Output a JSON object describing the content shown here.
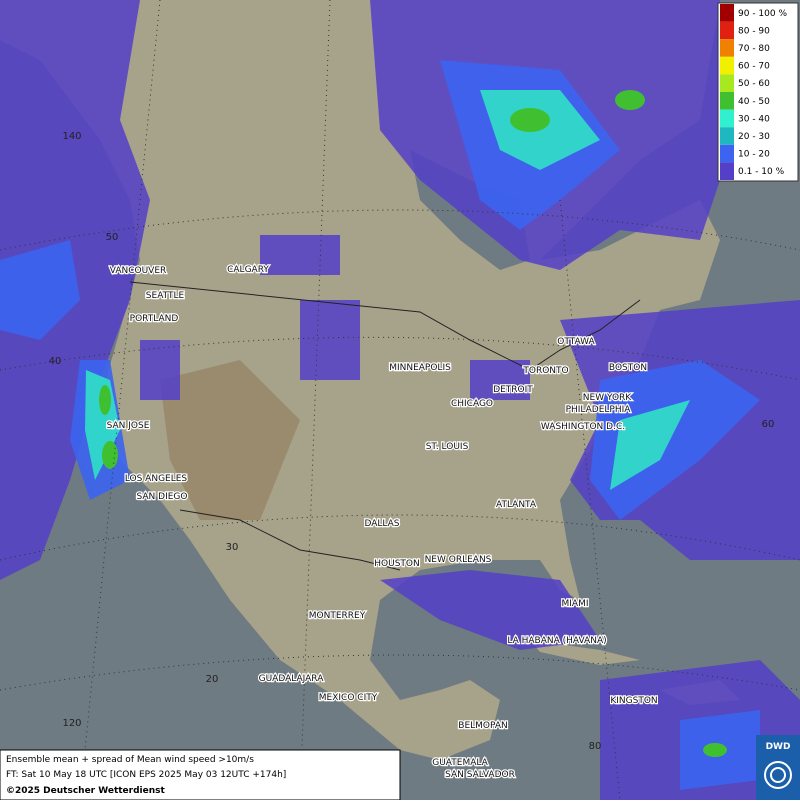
{
  "legend": {
    "items": [
      {
        "label": "90 - 100 %",
        "color": "#a00000"
      },
      {
        "label": "80 - 90",
        "color": "#e02010"
      },
      {
        "label": "70 - 80",
        "color": "#f08000"
      },
      {
        "label": "60 - 70",
        "color": "#f0f000"
      },
      {
        "label": "50 - 60",
        "color": "#a8e820"
      },
      {
        "label": "40 - 50",
        "color": "#40c030"
      },
      {
        "label": "30 - 40",
        "color": "#30f0d0"
      },
      {
        "label": "20 - 30",
        "color": "#20b8c0"
      },
      {
        "label": "10 - 20",
        "color": "#3c64f0"
      },
      {
        "label": "0.1 - 10 %",
        "color": "#5440c8"
      }
    ]
  },
  "cities": [
    "VANCOUVER",
    "CALGARY",
    "SEATTLE",
    "PORTLAND",
    "MINNEAPOLIS",
    "TORONTO",
    "OTTAWA",
    "BOSTON",
    "DETROIT",
    "CHICAGO",
    "NEW YORK",
    "PHILADELPHIA",
    "WASHINGTON D.C.",
    "ST. LOUIS",
    "SAN JOSE",
    "LOS ANGELES",
    "SAN DIEGO",
    "DALLAS",
    "ATLANTA",
    "HOUSTON",
    "NEW ORLEANS",
    "MIAMI",
    "MONTERREY",
    "LA HABANA (HAVANA)",
    "GUADALAJARA",
    "MEXICO CITY",
    "KINGSTON",
    "BELMOPAN",
    "GUATEMALA",
    "SAN SALVADOR"
  ],
  "grid_labels": [
    "140",
    "50",
    "40",
    "30",
    "20",
    "120",
    "60",
    "80"
  ],
  "footer": {
    "line1": "Ensemble mean + spread of Mean wind speed >10m/s",
    "line2": "FT: Sat 10 May 18 UTC [ICON EPS 2025 May 03 12UTC +174h]",
    "line3": "©2025 Deutscher Wetterdienst"
  },
  "logo": "DWD"
}
